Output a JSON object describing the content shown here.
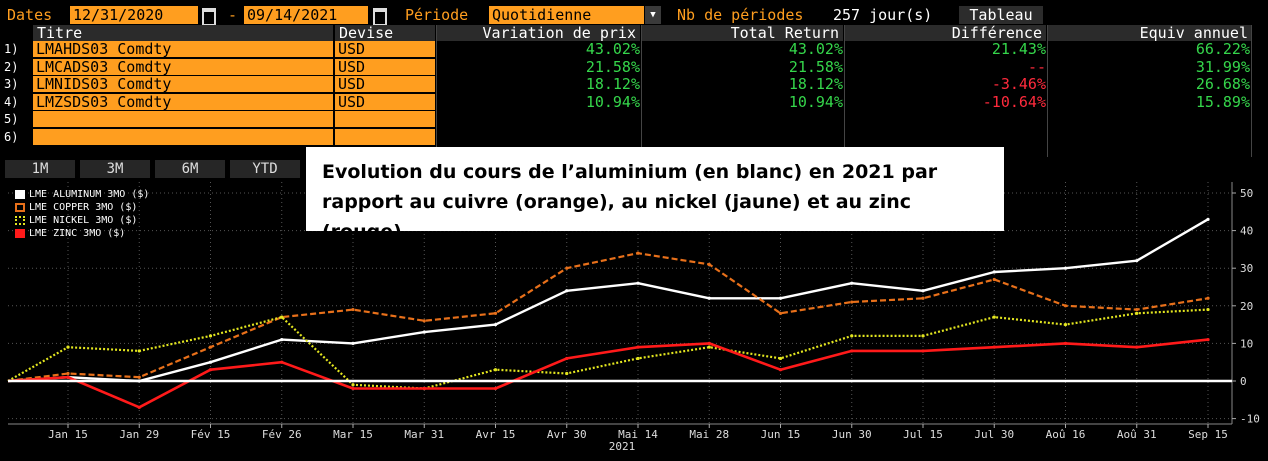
{
  "toolbar": {
    "dates_label": "Dates",
    "start_date": "12/31/2020",
    "dash": "-",
    "end_date": "09/14/2021",
    "periode_label": "Période",
    "periode_value": "Quotidienne",
    "nb_label": "Nb de périodes",
    "nb_value": "257 jour(s)",
    "tableau_button": "Tableau"
  },
  "table": {
    "headers": [
      "Titre",
      "Devise",
      "Variation de prix",
      "Total Return",
      "Différence",
      "Equiv annuel"
    ],
    "rows": [
      {
        "idx": "1)",
        "titre": "LMAHDS03 Comdty",
        "devise": "USD",
        "variation": "43.02%",
        "total_return": "43.02%",
        "difference": "21.43%",
        "diff_sign": "pos",
        "equiv": "66.22%"
      },
      {
        "idx": "2)",
        "titre": "LMCADS03 Comdty",
        "devise": "USD",
        "variation": "21.58%",
        "total_return": "21.58%",
        "difference": "--",
        "diff_sign": "neg",
        "equiv": "31.99%"
      },
      {
        "idx": "3)",
        "titre": "LMNIDS03 Comdty",
        "devise": "USD",
        "variation": "18.12%",
        "total_return": "18.12%",
        "difference": "-3.46%",
        "diff_sign": "neg",
        "equiv": "26.68%"
      },
      {
        "idx": "4)",
        "titre": "LMZSDS03 Comdty",
        "devise": "USD",
        "variation": "10.94%",
        "total_return": "10.94%",
        "difference": "-10.64%",
        "diff_sign": "neg",
        "equiv": "15.89%"
      },
      {
        "idx": "5)",
        "titre": "",
        "devise": "",
        "variation": "",
        "total_return": "",
        "difference": "",
        "diff_sign": "pos",
        "equiv": ""
      },
      {
        "idx": "6)",
        "titre": "",
        "devise": "",
        "variation": "",
        "total_return": "",
        "difference": "",
        "diff_sign": "pos",
        "equiv": ""
      }
    ]
  },
  "period_buttons": [
    "1M",
    "3M",
    "6M",
    "YTD"
  ],
  "annotation": "Evolution du cours de l’aluminium (en blanc) en 2021 par rapport au cuivre (orange), au nickel (jaune) et au zinc (rouge)",
  "colors": {
    "orange_field": "#ff9e1f",
    "positive": "#35d64b",
    "negative": "#ff2a3c",
    "aluminum": "#ffffff",
    "copper": "#e8701a",
    "nickel": "#e3e61f",
    "zinc": "#ff1a1a"
  },
  "chart_data": {
    "type": "line",
    "xlabel": "2021",
    "x": [
      "Jan 15",
      "Jan 29",
      "Fév 15",
      "Fév 26",
      "Mar 15",
      "Mar 31",
      "Avr 15",
      "Avr 30",
      "Mai 14",
      "Mai 28",
      "Jun 15",
      "Jun 30",
      "Jul 15",
      "Jul 30",
      "Aoû 16",
      "Aoû 31",
      "Sep 15"
    ],
    "ylim": [
      -12,
      52
    ],
    "yticks": [
      -10,
      0,
      10,
      20,
      30,
      40,
      50
    ],
    "grid": true,
    "legend_position": "top-left",
    "series": [
      {
        "name": "LME ALUMINUM  3MO ($)",
        "values": [
          1,
          0,
          5,
          11,
          10,
          13,
          15,
          24,
          26,
          22,
          22,
          26,
          24,
          29,
          30,
          32,
          43
        ]
      },
      {
        "name": "LME COPPER  3MO ($)",
        "values": [
          2,
          1,
          9,
          17,
          19,
          16,
          18,
          30,
          34,
          31,
          18,
          21,
          22,
          27,
          20,
          19,
          22
        ]
      },
      {
        "name": "LME NICKEL  3MO ($)",
        "values": [
          9,
          8,
          12,
          17,
          -1,
          -2,
          3,
          2,
          6,
          9,
          6,
          12,
          12,
          17,
          15,
          18,
          19
        ]
      },
      {
        "name": "LME ZINC  3MO ($)",
        "values": [
          1,
          -7,
          3,
          5,
          -2,
          -2,
          -2,
          6,
          9,
          10,
          3,
          8,
          8,
          9,
          10,
          9,
          11
        ]
      }
    ]
  }
}
